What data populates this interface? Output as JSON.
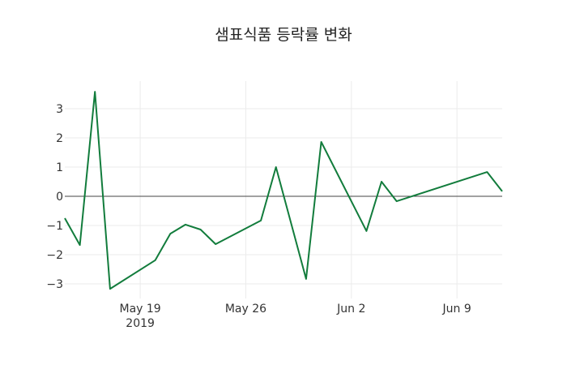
{
  "chart_data": {
    "type": "line",
    "title": "샘표식품 등락률 변화",
    "xlabel": "",
    "ylabel": "",
    "x": [
      "2019-05-14",
      "2019-05-15",
      "2019-05-16",
      "2019-05-17",
      "2019-05-20",
      "2019-05-21",
      "2019-05-22",
      "2019-05-23",
      "2019-05-24",
      "2019-05-27",
      "2019-05-28",
      "2019-05-30",
      "2019-05-31",
      "2019-06-03",
      "2019-06-04",
      "2019-06-05",
      "2019-06-11",
      "2019-06-12"
    ],
    "series": [
      {
        "name": "등락률",
        "color": "#127c3c",
        "values": [
          -0.75,
          -1.67,
          3.58,
          -3.17,
          -2.19,
          -1.28,
          -0.97,
          -1.14,
          -1.64,
          -0.83,
          1.0,
          -2.83,
          1.86,
          -1.19,
          0.5,
          -0.17,
          0.83,
          0.17
        ]
      }
    ],
    "xticks": [
      {
        "date": "2019-05-19",
        "label": "May 19",
        "sublabel": "2019"
      },
      {
        "date": "2019-05-26",
        "label": "May 26",
        "sublabel": ""
      },
      {
        "date": "2019-06-02",
        "label": "Jun 2",
        "sublabel": ""
      },
      {
        "date": "2019-06-09",
        "label": "Jun 9",
        "sublabel": ""
      }
    ],
    "yticks": [
      3,
      2,
      1,
      0,
      -1,
      -2,
      -3
    ],
    "ytick_labels": [
      "3",
      "2",
      "1",
      "0",
      "−1",
      "−2",
      "−3"
    ],
    "xlim": [
      "2019-05-14",
      "2019-06-12"
    ],
    "ylim": [
      -3.2,
      3.95
    ],
    "grid": true,
    "legend": null
  }
}
